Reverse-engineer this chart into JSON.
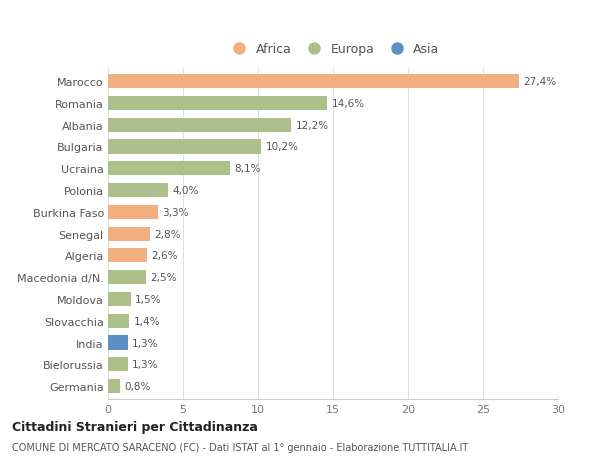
{
  "categories": [
    "Marocco",
    "Romania",
    "Albania",
    "Bulgaria",
    "Ucraina",
    "Polonia",
    "Burkina Faso",
    "Senegal",
    "Algeria",
    "Macedonia d/N.",
    "Moldova",
    "Slovacchia",
    "India",
    "Bielorussia",
    "Germania"
  ],
  "values": [
    27.4,
    14.6,
    12.2,
    10.2,
    8.1,
    4.0,
    3.3,
    2.8,
    2.6,
    2.5,
    1.5,
    1.4,
    1.3,
    1.3,
    0.8
  ],
  "labels": [
    "27,4%",
    "14,6%",
    "12,2%",
    "10,2%",
    "8,1%",
    "4,0%",
    "3,3%",
    "2,8%",
    "2,6%",
    "2,5%",
    "1,5%",
    "1,4%",
    "1,3%",
    "1,3%",
    "0,8%"
  ],
  "continent": [
    "Africa",
    "Europa",
    "Europa",
    "Europa",
    "Europa",
    "Europa",
    "Africa",
    "Africa",
    "Africa",
    "Europa",
    "Europa",
    "Europa",
    "Asia",
    "Europa",
    "Europa"
  ],
  "colors": {
    "Africa": "#F2B080",
    "Europa": "#ADBF8A",
    "Asia": "#5B8EC4"
  },
  "bar_height": 0.65,
  "xlim": [
    0,
    30
  ],
  "xticks": [
    0,
    5,
    10,
    15,
    20,
    25,
    30
  ],
  "title": "Cittadini Stranieri per Cittadinanza",
  "subtitle": "COMUNE DI MERCATO SARACENO (FC) - Dati ISTAT al 1° gennaio - Elaborazione TUTTITALIA.IT",
  "background_color": "#ffffff",
  "legend_labels": [
    "Africa",
    "Europa",
    "Asia"
  ],
  "legend_colors": [
    "#F2B080",
    "#ADBF8A",
    "#5B8EC4"
  ]
}
